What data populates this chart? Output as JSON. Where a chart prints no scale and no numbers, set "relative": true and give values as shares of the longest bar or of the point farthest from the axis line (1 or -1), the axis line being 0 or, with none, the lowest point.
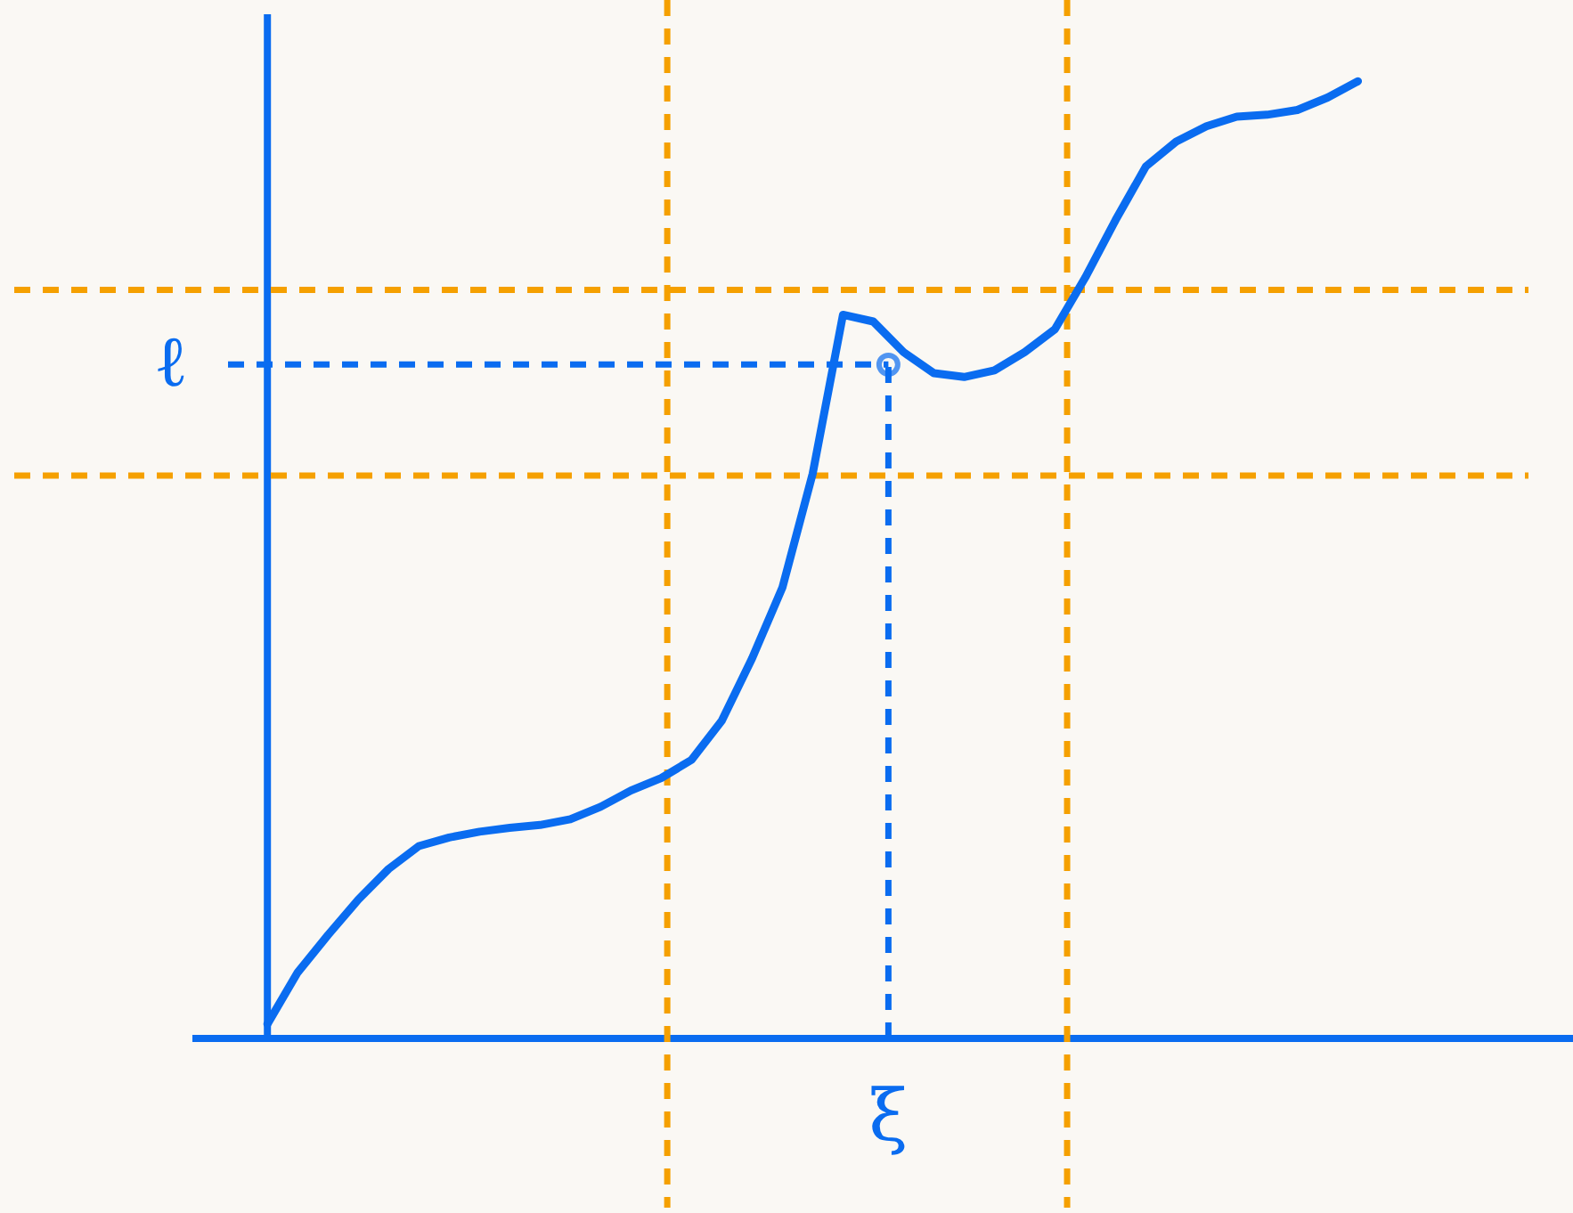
{
  "chart_data": {
    "type": "line",
    "relative": true,
    "marker": "none",
    "line_style": "solid",
    "categories": [
      null,
      null,
      null,
      null,
      null,
      null,
      null,
      null,
      null,
      null,
      null,
      null,
      null,
      null,
      null,
      null,
      null,
      null,
      null,
      null,
      null,
      null,
      null,
      null,
      null,
      null,
      null,
      null,
      null,
      null,
      null,
      null,
      null,
      null,
      null,
      null,
      null
    ],
    "series": [
      {
        "color": "#0a6cf0",
        "values": [
          0.015,
          0.069,
          0.108,
          0.145,
          0.177,
          0.201,
          0.21,
          0.216,
          0.22,
          0.223,
          0.229,
          0.242,
          0.259,
          0.272,
          0.291,
          0.332,
          0.397,
          0.471,
          0.59,
          0.756,
          0.749,
          0.717,
          0.695,
          0.691,
          0.698,
          0.717,
          0.741,
          0.795,
          0.855,
          0.911,
          0.937,
          0.953,
          0.963,
          0.965,
          0.97,
          0.983,
          1.0
        ]
      }
    ],
    "annotations": [
      "ξ"
    ],
    "ref_lines": [
      {
        "axis": "y",
        "value": 0.782,
        "color": "#f5a000",
        "line_style": "dashed"
      },
      {
        "axis": "y",
        "value": 0.588,
        "color": "#f5a000",
        "line_style": "dashed"
      },
      {
        "axis": "y",
        "value": 0.704,
        "label": "ℓ",
        "color": "#0a6cf0",
        "line_style": "dashed"
      }
    ]
  }
}
